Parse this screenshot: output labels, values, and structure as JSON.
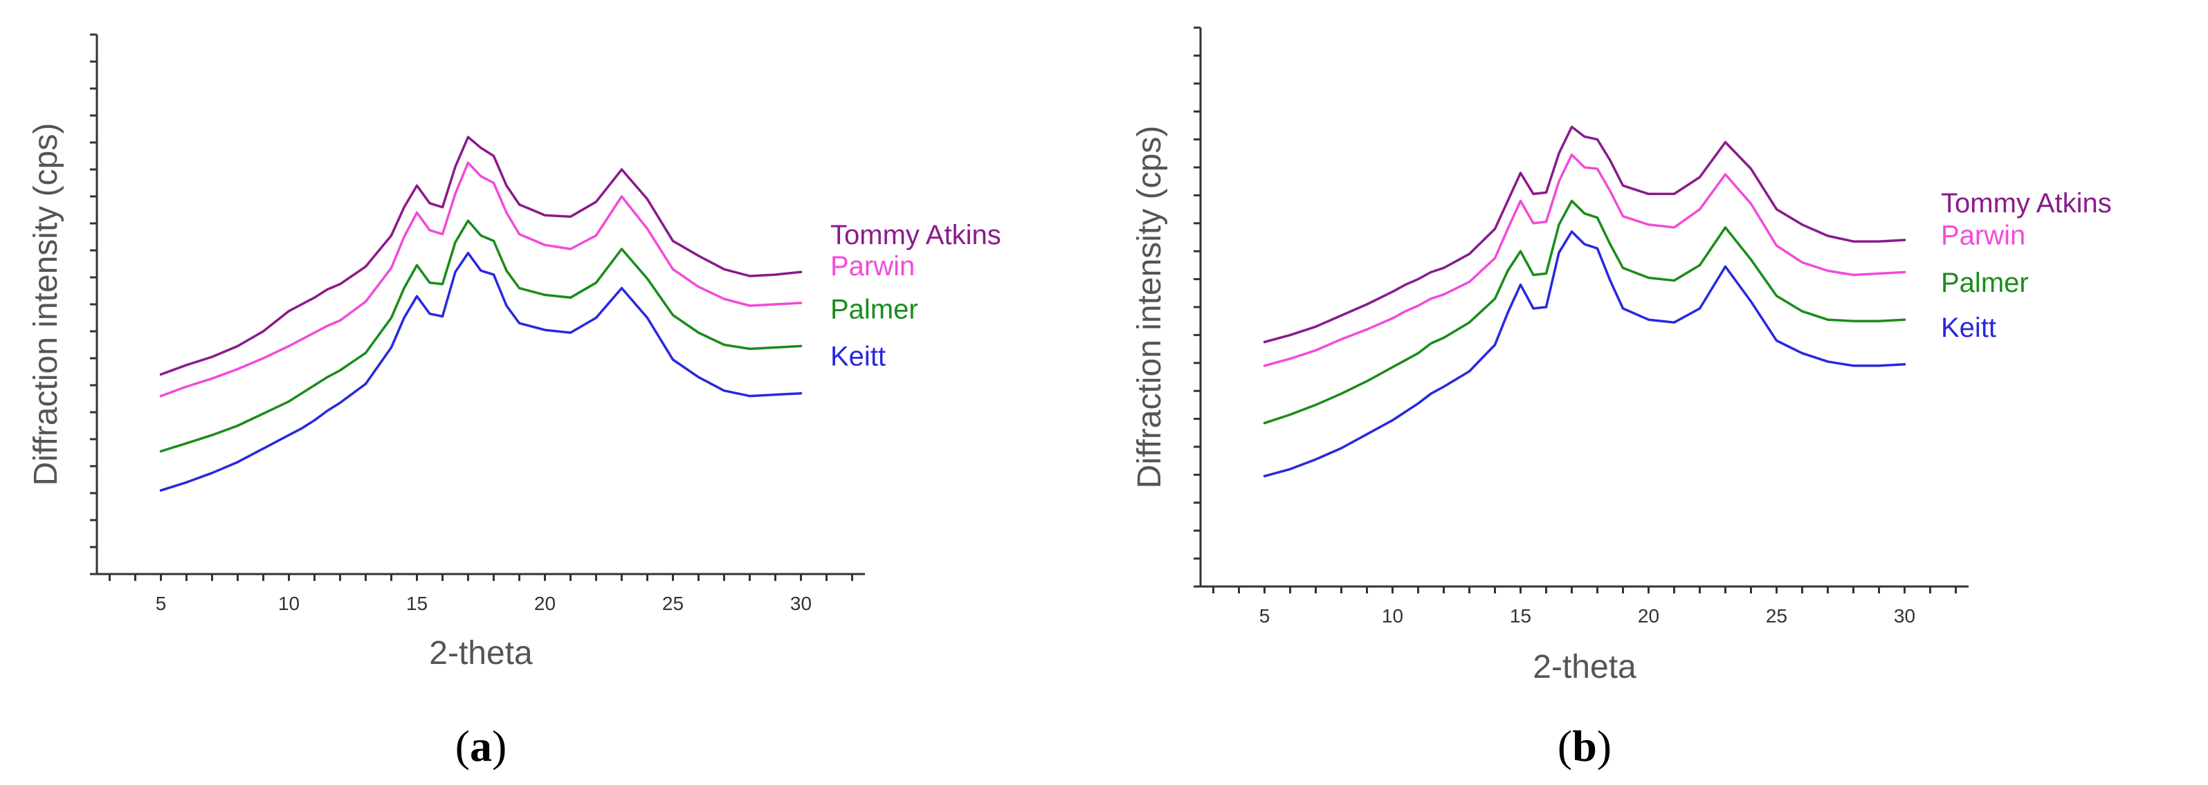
{
  "chart_data": [
    {
      "panel_label": "a",
      "type": "line",
      "xlabel": "2-theta",
      "ylabel": "Diffraction intensity (cps)",
      "xlim": [
        2.5,
        32.5
      ],
      "ylim": [
        0,
        20
      ],
      "x_ticks": [
        5,
        10,
        15,
        20,
        25,
        30
      ],
      "y_tick_labels_shown": false,
      "grid": false,
      "legend_position": "right",
      "series": [
        {
          "name": "Tommy Atkins",
          "color": "#8b1a8b",
          "x": [
            5,
            6,
            7,
            8,
            9,
            10,
            10.5,
            11,
            11.5,
            12,
            13,
            14,
            14.5,
            15,
            15.5,
            16,
            16.5,
            17,
            17.5,
            18,
            18.5,
            19,
            20,
            21,
            22,
            23,
            24,
            25,
            26,
            27,
            28,
            29,
            30
          ],
          "y": [
            7.4,
            7.75,
            8.05,
            8.45,
            9.0,
            9.75,
            10.0,
            10.25,
            10.55,
            10.75,
            11.4,
            12.55,
            13.6,
            14.4,
            13.75,
            13.6,
            15.1,
            16.2,
            15.8,
            15.5,
            14.4,
            13.7,
            13.3,
            13.25,
            13.8,
            15.0,
            13.9,
            12.35,
            11.8,
            11.3,
            11.05,
            11.1,
            11.2
          ]
        },
        {
          "name": "Parwin",
          "color": "#f24bd9",
          "x": [
            5,
            6,
            7,
            8,
            9,
            10,
            10.5,
            11,
            11.5,
            12,
            13,
            14,
            14.5,
            15,
            15.5,
            16,
            16.5,
            17,
            17.5,
            18,
            18.5,
            19,
            20,
            21,
            22,
            23,
            24,
            25,
            26,
            27,
            28,
            29,
            30
          ],
          "y": [
            6.6,
            6.95,
            7.25,
            7.6,
            8.0,
            8.45,
            8.7,
            8.95,
            9.2,
            9.4,
            10.1,
            11.35,
            12.5,
            13.4,
            12.75,
            12.6,
            14.1,
            15.25,
            14.75,
            14.5,
            13.4,
            12.6,
            12.2,
            12.05,
            12.55,
            14.0,
            12.8,
            11.3,
            10.65,
            10.2,
            9.95,
            10.0,
            10.05
          ]
        },
        {
          "name": "Palmer",
          "color": "#1a8c1a",
          "x": [
            5,
            6,
            7,
            8,
            9,
            10,
            10.5,
            11,
            11.5,
            12,
            13,
            14,
            14.5,
            15,
            15.5,
            16,
            16.5,
            17,
            17.5,
            18,
            18.5,
            19,
            20,
            21,
            22,
            23,
            24,
            25,
            26,
            27,
            28,
            29,
            30
          ],
          "y": [
            4.55,
            4.85,
            5.15,
            5.5,
            5.95,
            6.4,
            6.7,
            7.0,
            7.3,
            7.55,
            8.2,
            9.5,
            10.6,
            11.45,
            10.8,
            10.75,
            12.3,
            13.1,
            12.55,
            12.35,
            11.25,
            10.6,
            10.35,
            10.25,
            10.8,
            12.05,
            10.95,
            9.6,
            8.95,
            8.5,
            8.35,
            8.4,
            8.45
          ]
        },
        {
          "name": "Keitt",
          "color": "#2828e0",
          "x": [
            5,
            6,
            7,
            8,
            9,
            10,
            10.5,
            11,
            11.5,
            12,
            13,
            14,
            14.5,
            15,
            15.5,
            16,
            16.5,
            17,
            17.5,
            18,
            18.5,
            19,
            20,
            21,
            22,
            23,
            24,
            25,
            26,
            27,
            28,
            29,
            30
          ],
          "y": [
            3.1,
            3.4,
            3.75,
            4.15,
            4.65,
            5.15,
            5.4,
            5.7,
            6.05,
            6.35,
            7.05,
            8.4,
            9.5,
            10.3,
            9.65,
            9.55,
            11.2,
            11.9,
            11.25,
            11.1,
            9.95,
            9.3,
            9.05,
            8.95,
            9.5,
            10.6,
            9.5,
            7.95,
            7.3,
            6.8,
            6.6,
            6.65,
            6.7
          ]
        }
      ]
    },
    {
      "panel_label": "b",
      "type": "line",
      "xlabel": "2-theta",
      "ylabel": "Diffraction intensity (cps)",
      "xlim": [
        2.5,
        32.5
      ],
      "ylim": [
        0,
        20
      ],
      "x_ticks": [
        5,
        10,
        15,
        20,
        25,
        30
      ],
      "y_tick_labels_shown": false,
      "grid": false,
      "legend_position": "right",
      "series": [
        {
          "name": "Tommy Atkins",
          "color": "#8b1a8b",
          "x": [
            5,
            6,
            7,
            8,
            9,
            10,
            10.5,
            11,
            11.5,
            12,
            13,
            14,
            14.5,
            15,
            15.5,
            16,
            16.5,
            17,
            17.5,
            18,
            18.5,
            19,
            20,
            21,
            22,
            23,
            24,
            25,
            26,
            27,
            28,
            29,
            30
          ],
          "y": [
            8.75,
            9.0,
            9.3,
            9.7,
            10.1,
            10.55,
            10.8,
            11.0,
            11.25,
            11.4,
            11.9,
            12.8,
            13.8,
            14.8,
            14.05,
            14.1,
            15.5,
            16.45,
            16.1,
            16.0,
            15.25,
            14.35,
            14.05,
            14.05,
            14.65,
            15.9,
            14.95,
            13.5,
            12.95,
            12.55,
            12.35,
            12.35,
            12.4
          ]
        },
        {
          "name": "Parwin",
          "color": "#f24bd9",
          "x": [
            5,
            6,
            7,
            8,
            9,
            10,
            10.5,
            11,
            11.5,
            12,
            13,
            14,
            14.5,
            15,
            15.5,
            16,
            16.5,
            17,
            17.5,
            18,
            18.5,
            19,
            20,
            21,
            22,
            23,
            24,
            25,
            26,
            27,
            28,
            29,
            30
          ],
          "y": [
            7.9,
            8.15,
            8.45,
            8.85,
            9.2,
            9.6,
            9.85,
            10.05,
            10.3,
            10.45,
            10.9,
            11.75,
            12.8,
            13.8,
            13.0,
            13.05,
            14.5,
            15.45,
            15.0,
            14.95,
            14.15,
            13.25,
            12.95,
            12.85,
            13.5,
            14.75,
            13.7,
            12.2,
            11.6,
            11.3,
            11.15,
            11.2,
            11.25
          ]
        },
        {
          "name": "Palmer",
          "color": "#1a8c1a",
          "x": [
            5,
            6,
            7,
            8,
            9,
            10,
            10.5,
            11,
            11.5,
            12,
            13,
            14,
            14.5,
            15,
            15.5,
            16,
            16.5,
            17,
            17.5,
            18,
            18.5,
            19,
            20,
            21,
            22,
            23,
            24,
            25,
            26,
            27,
            28,
            29,
            30
          ],
          "y": [
            5.85,
            6.15,
            6.5,
            6.9,
            7.35,
            7.85,
            8.1,
            8.35,
            8.7,
            8.9,
            9.45,
            10.3,
            11.3,
            12.0,
            11.15,
            11.2,
            12.95,
            13.8,
            13.35,
            13.2,
            12.25,
            11.4,
            11.05,
            10.95,
            11.5,
            12.85,
            11.7,
            10.4,
            9.85,
            9.55,
            9.5,
            9.5,
            9.55
          ]
        },
        {
          "name": "Keitt",
          "color": "#2828e0",
          "x": [
            5,
            6,
            7,
            8,
            9,
            10,
            10.5,
            11,
            11.5,
            12,
            13,
            14,
            14.5,
            15,
            15.5,
            16,
            16.5,
            17,
            17.5,
            18,
            18.5,
            19,
            20,
            21,
            22,
            23,
            24,
            25,
            26,
            27,
            28,
            29,
            30
          ],
          "y": [
            3.95,
            4.2,
            4.55,
            4.95,
            5.45,
            5.95,
            6.25,
            6.55,
            6.9,
            7.15,
            7.7,
            8.65,
            9.8,
            10.8,
            9.95,
            10.0,
            11.95,
            12.7,
            12.25,
            12.1,
            10.95,
            9.95,
            9.55,
            9.45,
            9.95,
            11.45,
            10.2,
            8.8,
            8.35,
            8.05,
            7.9,
            7.9,
            7.95
          ]
        }
      ]
    }
  ]
}
